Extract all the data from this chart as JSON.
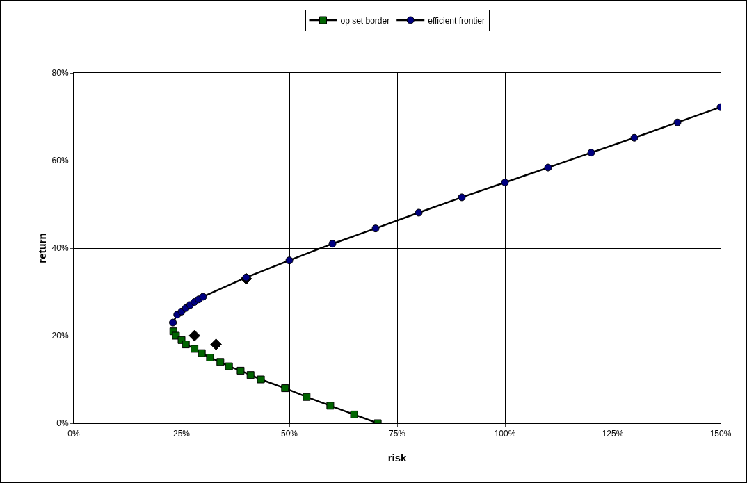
{
  "chart_data": {
    "type": "line",
    "xlabel": "risk",
    "ylabel": "return",
    "xlim": [
      0,
      150
    ],
    "ylim": [
      0,
      80
    ],
    "xticks": [
      {
        "value": 0,
        "label": "0%"
      },
      {
        "value": 25,
        "label": "25%"
      },
      {
        "value": 50,
        "label": "50%"
      },
      {
        "value": 75,
        "label": "75%"
      },
      {
        "value": 100,
        "label": "100%"
      },
      {
        "value": 125,
        "label": "125%"
      },
      {
        "value": 150,
        "label": "150%"
      }
    ],
    "yticks": [
      {
        "value": 0,
        "label": "0%"
      },
      {
        "value": 20,
        "label": "20%"
      },
      {
        "value": 40,
        "label": "40%"
      },
      {
        "value": 60,
        "label": "60%"
      },
      {
        "value": 80,
        "label": "80%"
      }
    ],
    "grid": true,
    "legend": "top",
    "series": [
      {
        "type": "scatter",
        "color": "#000000",
        "marker": "diamond",
        "x": [
          28,
          33,
          40
        ],
        "values": [
          20,
          18,
          33
        ]
      },
      {
        "name": "op set border",
        "color": "#006400",
        "marker": "square",
        "x": [
          23.1,
          23.7,
          25,
          26,
          28,
          29.7,
          31.6,
          34,
          36,
          38.7,
          41,
          43.4,
          49,
          54,
          59.5,
          65,
          70.5
        ],
        "values": [
          21,
          20,
          19,
          18,
          17,
          16,
          15,
          14,
          13,
          12,
          11,
          10,
          8,
          6,
          4,
          2,
          0
        ]
      },
      {
        "name": "efficient frontier",
        "color": "#000080",
        "marker": "circle",
        "x": [
          23,
          24,
          25,
          26,
          27,
          28,
          29,
          30,
          40,
          50,
          60,
          70,
          80,
          90,
          100,
          110,
          120,
          130,
          140,
          150
        ],
        "values": [
          23,
          24.8,
          25.5,
          26.3,
          27,
          27.7,
          28.3,
          28.9,
          33.3,
          37.2,
          41,
          44.5,
          48.1,
          51.6,
          55,
          58.4,
          61.8,
          65.2,
          68.7,
          72.2
        ]
      }
    ]
  }
}
